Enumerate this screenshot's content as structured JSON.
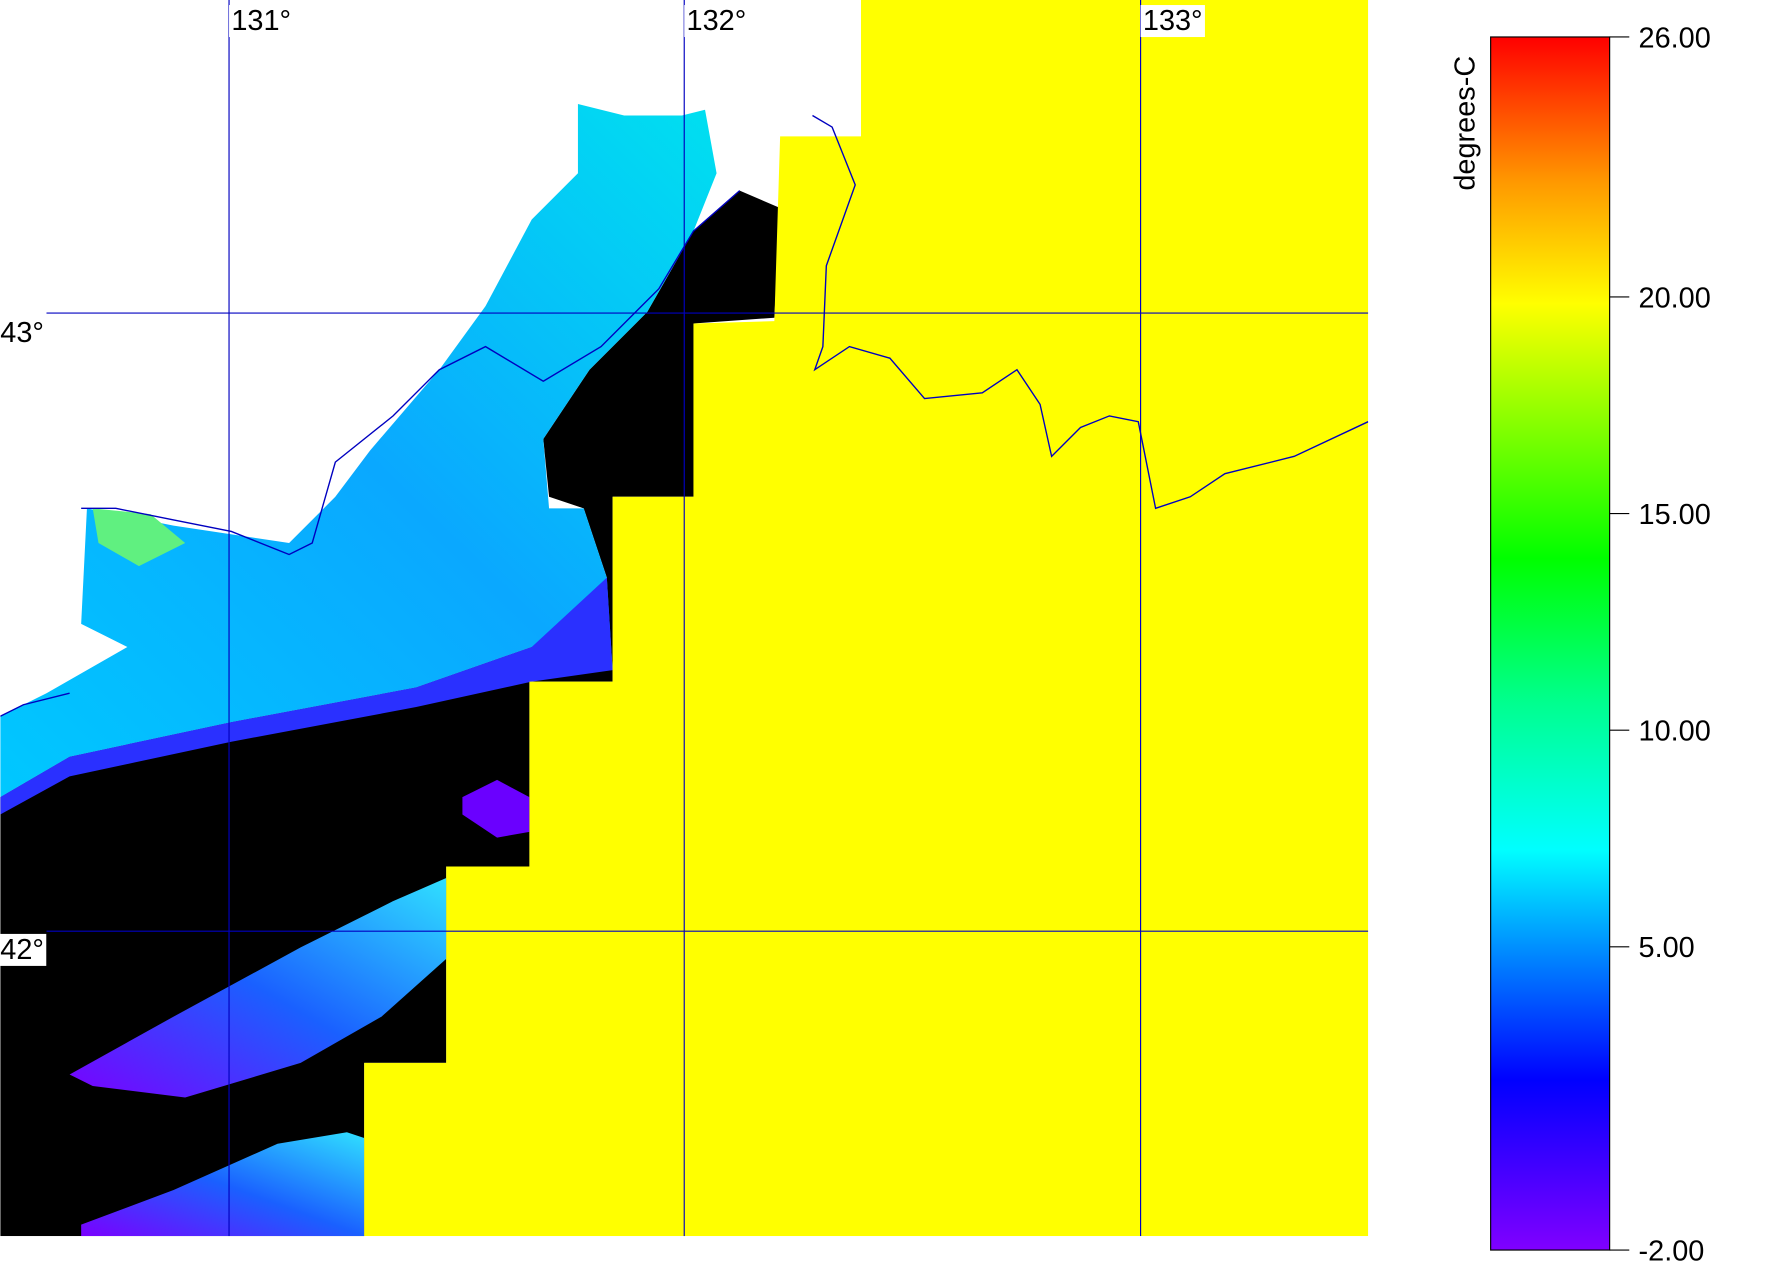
{
  "map": {
    "longitude_labels": [
      "131°",
      "132°",
      "133°"
    ],
    "latitude_labels": [
      "43°",
      "42°"
    ],
    "colorbar": {
      "label": "degrees-C",
      "ticks": [
        {
          "value": 26,
          "label": "26.00"
        },
        {
          "value": 20,
          "label": "20.00"
        },
        {
          "value": 15,
          "label": "15.00"
        },
        {
          "value": 10,
          "label": "10.00"
        },
        {
          "value": 5,
          "label": "5.00"
        },
        {
          "value": -2,
          "label": "-2.00"
        }
      ]
    }
  }
}
